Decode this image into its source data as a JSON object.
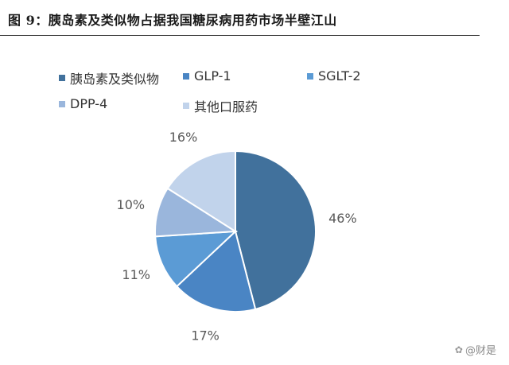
{
  "title": "图 9：胰岛素及类似物占据我国糖尿病用药市场半壁江山",
  "watermark": {
    "icon": "camera-flower-icon",
    "text": "@财是"
  },
  "chart_data": {
    "type": "pie",
    "title": "图 9：胰岛素及类似物占据我国糖尿病用药市场半壁江山",
    "legend_position": "top",
    "categories": [
      "胰岛素及类似物",
      "GLP-1",
      "SGLT-2",
      "DPP-4",
      "其他口服药"
    ],
    "values": [
      46,
      17,
      11,
      10,
      16
    ],
    "labels": [
      "46%",
      "17%",
      "11%",
      "10%",
      "16%"
    ],
    "colors": [
      "#41719c",
      "#4a85c4",
      "#5b9bd5",
      "#9ab6dc",
      "#c1d3eb"
    ],
    "start_angle_deg": 0,
    "direction": "clockwise"
  }
}
